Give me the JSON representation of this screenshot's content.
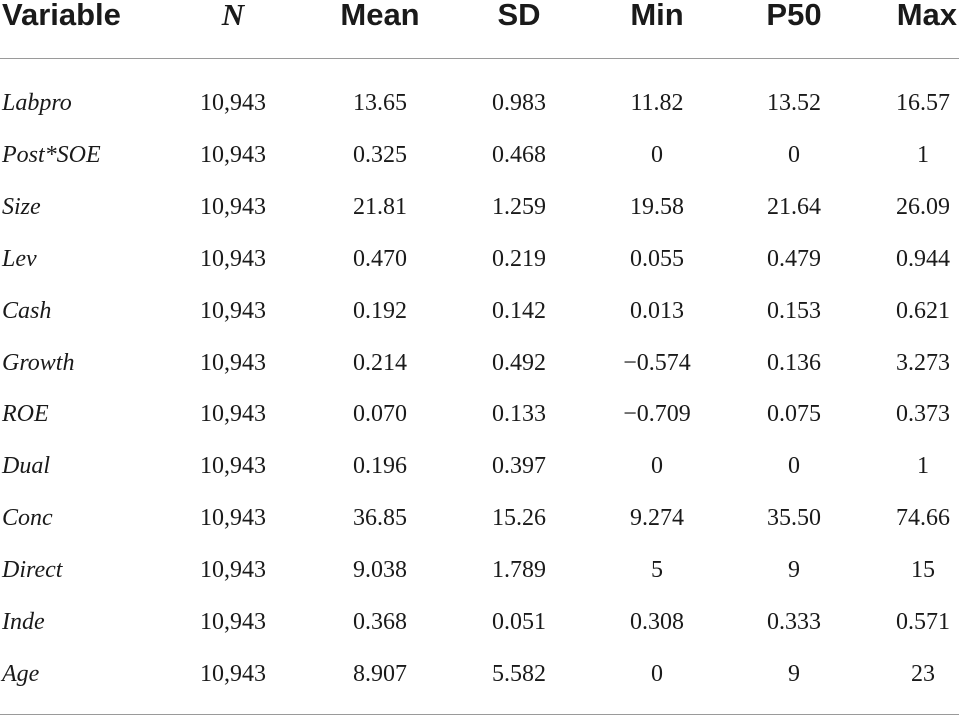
{
  "table": {
    "headers": [
      "Variable",
      "N",
      "Mean",
      "SD",
      "Min",
      "P50",
      "Max"
    ],
    "rows": [
      [
        "Labpro",
        "10,943",
        "13.65",
        "0.983",
        "11.82",
        "13.52",
        "16.57"
      ],
      [
        "Post*SOE",
        "10,943",
        "0.325",
        "0.468",
        "0",
        "0",
        "1"
      ],
      [
        "Size",
        "10,943",
        "21.81",
        "1.259",
        "19.58",
        "21.64",
        "26.09"
      ],
      [
        "Lev",
        "10,943",
        "0.470",
        "0.219",
        "0.055",
        "0.479",
        "0.944"
      ],
      [
        "Cash",
        "10,943",
        "0.192",
        "0.142",
        "0.013",
        "0.153",
        "0.621"
      ],
      [
        "Growth",
        "10,943",
        "0.214",
        "0.492",
        "−0.574",
        "0.136",
        "3.273"
      ],
      [
        "ROE",
        "10,943",
        "0.070",
        "0.133",
        "−0.709",
        "0.075",
        "0.373"
      ],
      [
        "Dual",
        "10,943",
        "0.196",
        "0.397",
        "0",
        "0",
        "1"
      ],
      [
        "Conc",
        "10,943",
        "36.85",
        "15.26",
        "9.274",
        "35.50",
        "74.66"
      ],
      [
        "Direct",
        "10,943",
        "9.038",
        "1.789",
        "5",
        "9",
        "15"
      ],
      [
        "Inde",
        "10,943",
        "0.368",
        "0.051",
        "0.308",
        "0.333",
        "0.571"
      ],
      [
        "Age",
        "10,943",
        "8.907",
        "5.582",
        "0",
        "9",
        "23"
      ]
    ]
  }
}
